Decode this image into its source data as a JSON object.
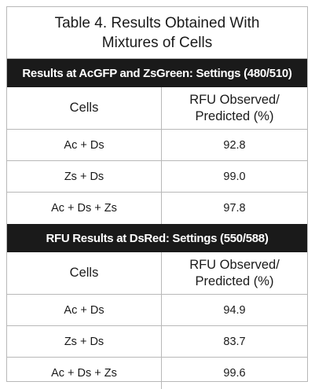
{
  "title": {
    "line1": "Table 4. Results Obtained With",
    "line2": "Mixtures of Cells"
  },
  "sections": [
    {
      "heading": "Results at AcGFP and ZsGreen: Settings (480/510)",
      "col1_header": "Cells",
      "col2_header_line1": "RFU Observed/",
      "col2_header_line2": "Predicted (%)",
      "rows": [
        {
          "cells": "Ac + Ds",
          "value": "92.8"
        },
        {
          "cells": "Zs + Ds",
          "value": "99.0"
        },
        {
          "cells": "Ac + Ds + Zs",
          "value": "97.8"
        }
      ]
    },
    {
      "heading": "RFU Results at DsRed: Settings (550/588)",
      "col1_header": "Cells",
      "col2_header_line1": "RFU Observed/",
      "col2_header_line2": "Predicted (%)",
      "rows": [
        {
          "cells": "Ac + Ds",
          "value": "94.9"
        },
        {
          "cells": "Zs + Ds",
          "value": "83.7"
        },
        {
          "cells": "Ac + Ds + Zs",
          "value": "99.6"
        }
      ]
    }
  ]
}
